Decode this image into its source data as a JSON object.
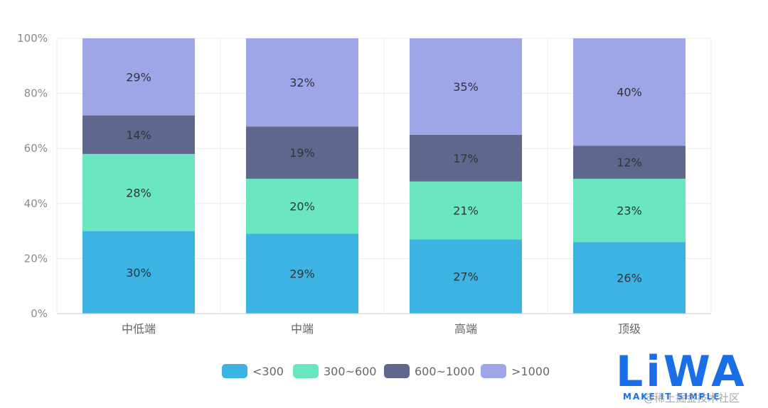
{
  "chart_data": {
    "type": "bar",
    "stacked": true,
    "categories": [
      "中低端",
      "中端",
      "高端",
      "顶级"
    ],
    "series": [
      {
        "name": "<300",
        "color": "#3db3e3",
        "values": [
          30,
          29,
          27,
          26
        ]
      },
      {
        "name": "300~600",
        "color": "#6ae6c0",
        "values": [
          28,
          20,
          21,
          23
        ]
      },
      {
        "name": "600~1000",
        "color": "#5f688c",
        "values": [
          14,
          19,
          17,
          12
        ]
      },
      {
        "name": ">1000",
        "color": "#9fa6e8",
        "values": [
          29,
          32,
          35,
          40
        ]
      }
    ],
    "yticks": [
      "0%",
      "20%",
      "40%",
      "60%",
      "80%",
      "100%"
    ],
    "ylim": [
      0,
      100
    ],
    "grid": true,
    "legend_position": "bottom"
  },
  "watermark": {
    "logo": "LiWA",
    "tagline": "MAKE IT SIMPLE",
    "overlay": "@稀土掘金技术社区"
  }
}
